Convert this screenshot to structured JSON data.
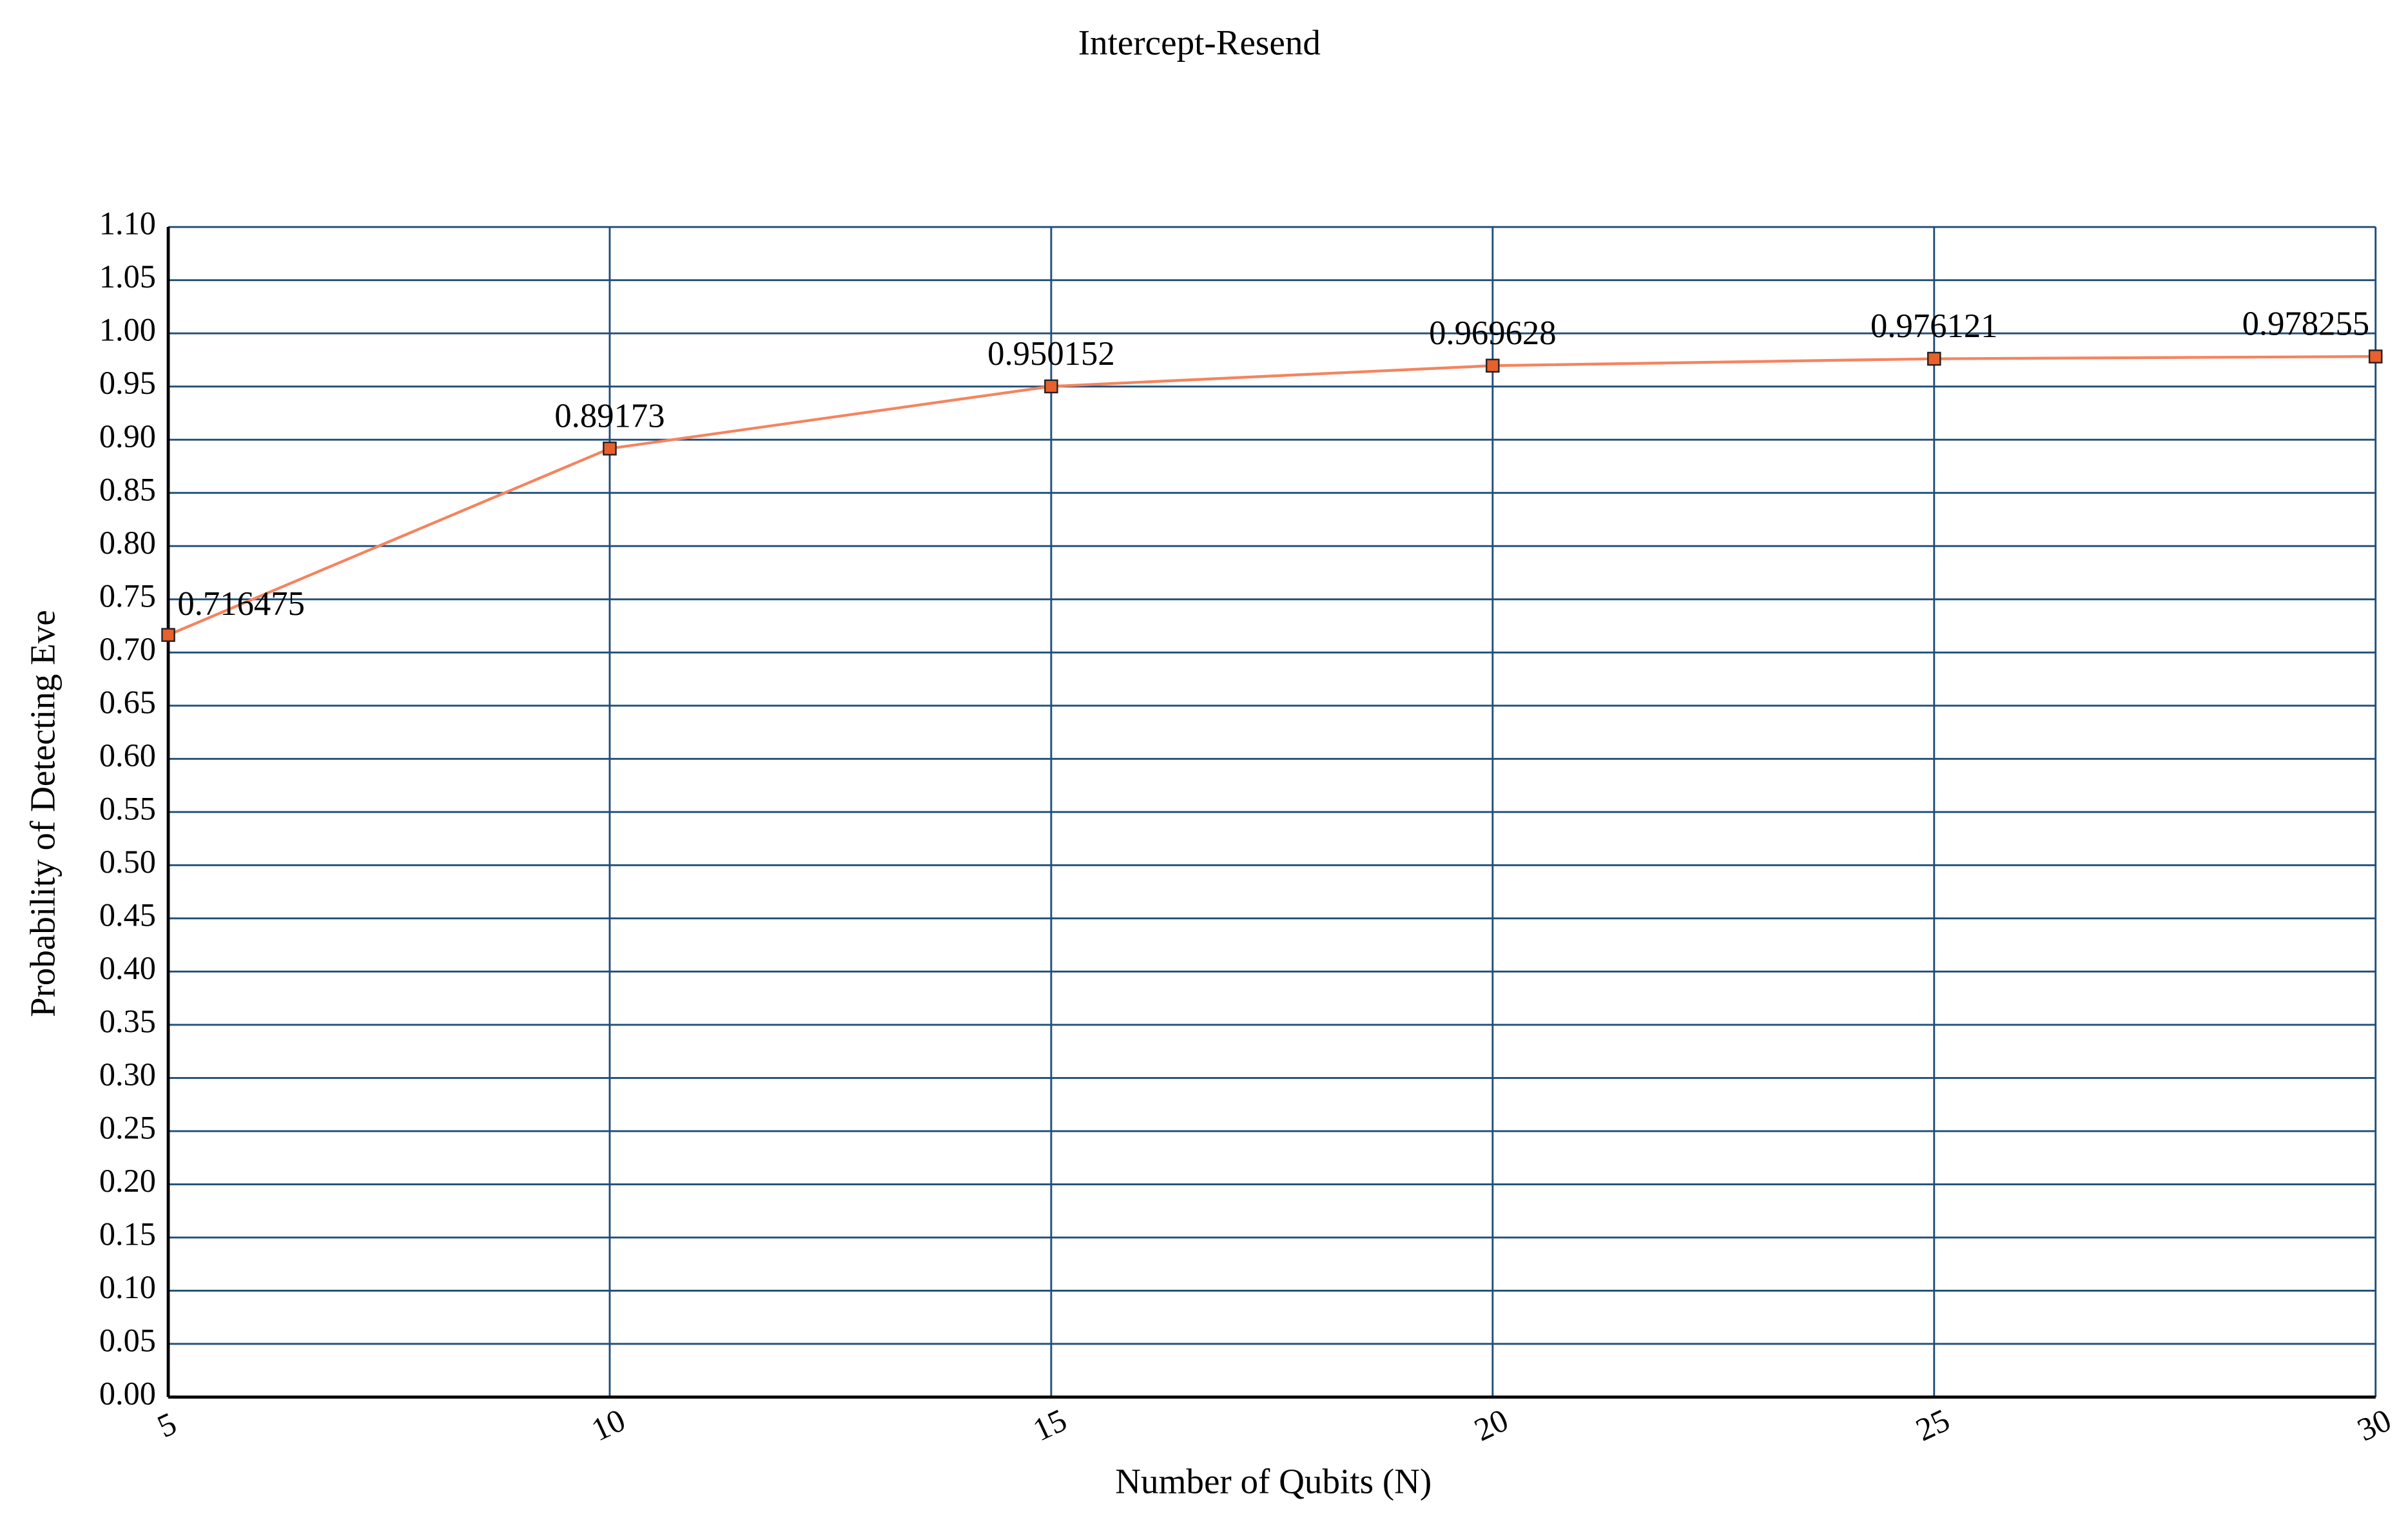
{
  "chart_data": {
    "type": "line",
    "title": "Intercept-Resend",
    "x_label": "Number of Qubits (N)",
    "y_label": "Probability of Detecting Eve",
    "x": [
      5,
      10,
      15,
      20,
      25,
      30
    ],
    "series": [
      {
        "name": "Intercept-Resend",
        "color": "#f4845f",
        "marker_color": "#e8602c",
        "values": [
          0.716475,
          0.89173,
          0.950152,
          0.969628,
          0.976121,
          0.978255
        ]
      }
    ],
    "xlim": [
      5,
      30
    ],
    "xticks": [
      5,
      10,
      15,
      20,
      25,
      30
    ],
    "ylim": [
      0,
      1.1
    ],
    "yticks": [
      {
        "value": 0,
        "label": "0.00"
      },
      {
        "value": 0.05,
        "label": "0.05"
      },
      {
        "value": 0.1,
        "label": "0.10"
      },
      {
        "value": 0.15,
        "label": "0.15"
      },
      {
        "value": 0.2,
        "label": "0.20"
      },
      {
        "value": 0.25,
        "label": "0.25"
      },
      {
        "value": 0.3,
        "label": "0.30"
      },
      {
        "value": 0.35,
        "label": "0.35"
      },
      {
        "value": 0.4,
        "label": "0.40"
      },
      {
        "value": 0.45,
        "label": "0.45"
      },
      {
        "value": 0.5,
        "label": "0.50"
      },
      {
        "value": 0.55,
        "label": "0.55"
      },
      {
        "value": 0.6,
        "label": "0.60"
      },
      {
        "value": 0.65,
        "label": "0.65"
      },
      {
        "value": 0.7,
        "label": "0.70"
      },
      {
        "value": 0.75,
        "label": "0.75"
      },
      {
        "value": 0.8,
        "label": "0.80"
      },
      {
        "value": 0.85,
        "label": "0.85"
      },
      {
        "value": 0.9,
        "label": "0.90"
      },
      {
        "value": 0.95,
        "label": "0.95"
      },
      {
        "value": 1.0,
        "label": "1.00"
      },
      {
        "value": 1.05,
        "label": "1.05"
      },
      {
        "value": 1.1,
        "label": "1.10"
      }
    ],
    "grid": true
  }
}
